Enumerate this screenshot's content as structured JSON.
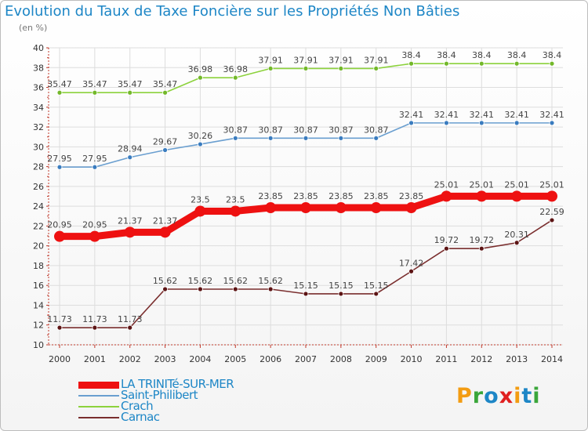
{
  "title": "Evolution du Taux de Taxe Foncière sur les Propriétés Non Bâties",
  "unit_label": "(en %)",
  "brand": {
    "text": "Proxiti",
    "letters": [
      {
        "ch": "P",
        "color": "#f39c12"
      },
      {
        "ch": "r",
        "color": "#3aa63a"
      },
      {
        "ch": "o",
        "color": "#1d86c6"
      },
      {
        "ch": "x",
        "color": "#e02020"
      },
      {
        "ch": "i",
        "color": "#f39c12"
      },
      {
        "ch": "t",
        "color": "#1d86c6"
      },
      {
        "ch": "i",
        "color": "#3aa63a"
      }
    ]
  },
  "chart_data": {
    "type": "line",
    "x": [
      "2000",
      "2001",
      "2002",
      "2003",
      "2004",
      "2005",
      "2006",
      "2007",
      "2008",
      "2009",
      "2010",
      "2011",
      "2012",
      "2013",
      "2014"
    ],
    "ylim": [
      10,
      40
    ],
    "yticks": [
      10,
      12,
      14,
      16,
      18,
      20,
      22,
      24,
      26,
      28,
      30,
      32,
      34,
      36,
      38,
      40
    ],
    "grid": true,
    "legend_position": "bottom-left",
    "series": [
      {
        "name": "Crach",
        "color": "#8cd23c",
        "dot": "#73b82a",
        "weight": "thin",
        "values": [
          35.47,
          35.47,
          35.47,
          35.47,
          36.98,
          36.98,
          37.91,
          37.91,
          37.91,
          37.91,
          38.4,
          38.4,
          38.4,
          38.4,
          38.4
        ],
        "labels": [
          "35.47",
          "35.47",
          "35.47",
          "35.47",
          "36.98",
          "36.98",
          "37.91",
          "37.91",
          "37.91",
          "37.91",
          "38.4",
          "38.4",
          "38.4",
          "38.4",
          "38.4"
        ]
      },
      {
        "name": "Saint-Philibert",
        "color": "#6a9fd0",
        "dot": "#3a7cbf",
        "weight": "thin",
        "values": [
          27.95,
          27.95,
          28.94,
          29.67,
          30.26,
          30.87,
          30.87,
          30.87,
          30.87,
          30.87,
          32.41,
          32.41,
          32.41,
          32.41,
          32.41
        ],
        "labels": [
          "27.95",
          "27.95",
          "28.94",
          "29.67",
          "30.26",
          "30.87",
          "30.87",
          "30.87",
          "30.87",
          "30.87",
          "32.41",
          "32.41",
          "32.41",
          "32.41",
          "32.41"
        ]
      },
      {
        "name": "LA TRINITé-SUR-MER",
        "color": "#ee1111",
        "dot": "#ee1111",
        "weight": "thick",
        "values": [
          20.95,
          20.95,
          21.37,
          21.37,
          23.5,
          23.5,
          23.85,
          23.85,
          23.85,
          23.85,
          23.85,
          25.01,
          25.01,
          25.01,
          25.01
        ],
        "labels": [
          "20.95",
          "20.95",
          "21.37",
          "21.37",
          "23.5",
          "23.5",
          "23.85",
          "23.85",
          "23.85",
          "23.85",
          "23.85",
          "25.01",
          "25.01",
          "25.01",
          "25.01"
        ]
      },
      {
        "name": "Carnac",
        "color": "#7a2e2e",
        "dot": "#5c1414",
        "weight": "thin",
        "values": [
          11.73,
          11.73,
          11.73,
          15.62,
          15.62,
          15.62,
          15.62,
          15.15,
          15.15,
          15.15,
          17.42,
          19.72,
          19.72,
          20.31,
          22.59
        ],
        "labels": [
          "11.73",
          "11.73",
          "11.73",
          "15.62",
          "15.62",
          "15.62",
          "15.62",
          "15.15",
          "15.15",
          "15.15",
          "17.42",
          "19.72",
          "19.72",
          "20.31",
          "22.59"
        ]
      }
    ],
    "legend_order": [
      "LA TRINITé-SUR-MER",
      "Saint-Philibert",
      "Crach",
      "Carnac"
    ]
  }
}
